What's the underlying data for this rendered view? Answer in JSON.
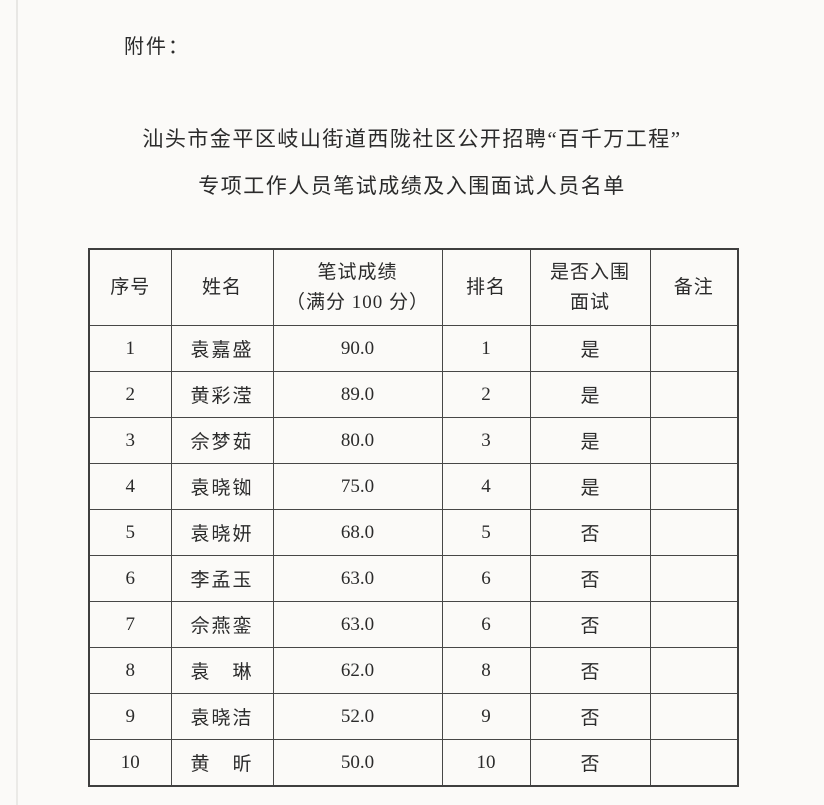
{
  "page": {
    "attachment_label": "附件：",
    "title_line1": "汕头市金平区岐山街道西陇社区公开招聘“百千万工程”",
    "title_line2": "专项工作人员笔试成绩及入围面试人员名单"
  },
  "colors": {
    "paper": "#fbfaf8",
    "ink": "#2b2b2b",
    "table_border": "#474747"
  },
  "table": {
    "headers": [
      "序号",
      "姓名",
      "笔试成绩\n（满分 100 分）",
      "排名",
      "是否入围\n面试",
      "备注"
    ],
    "row_keys": [
      "no",
      "name",
      "score",
      "rank",
      "shortlisted",
      "remark"
    ],
    "rows": [
      {
        "no": "1",
        "name": "袁嘉盛",
        "score": "90.0",
        "rank": "1",
        "shortlisted": "是",
        "remark": ""
      },
      {
        "no": "2",
        "name": "黄彩滢",
        "score": "89.0",
        "rank": "2",
        "shortlisted": "是",
        "remark": ""
      },
      {
        "no": "3",
        "name": "佘梦茹",
        "score": "80.0",
        "rank": "3",
        "shortlisted": "是",
        "remark": ""
      },
      {
        "no": "4",
        "name": "袁晓铷",
        "score": "75.0",
        "rank": "4",
        "shortlisted": "是",
        "remark": ""
      },
      {
        "no": "5",
        "name": "袁晓妍",
        "score": "68.0",
        "rank": "5",
        "shortlisted": "否",
        "remark": ""
      },
      {
        "no": "6",
        "name": "李孟玉",
        "score": "63.0",
        "rank": "6",
        "shortlisted": "否",
        "remark": ""
      },
      {
        "no": "7",
        "name": "佘燕銮",
        "score": "63.0",
        "rank": "6",
        "shortlisted": "否",
        "remark": ""
      },
      {
        "no": "8",
        "name": "袁　琳",
        "score": "62.0",
        "rank": "8",
        "shortlisted": "否",
        "remark": ""
      },
      {
        "no": "9",
        "name": "袁晓洁",
        "score": "52.0",
        "rank": "9",
        "shortlisted": "否",
        "remark": ""
      },
      {
        "no": "10",
        "name": "黄　昕",
        "score": "50.0",
        "rank": "10",
        "shortlisted": "否",
        "remark": ""
      }
    ]
  }
}
